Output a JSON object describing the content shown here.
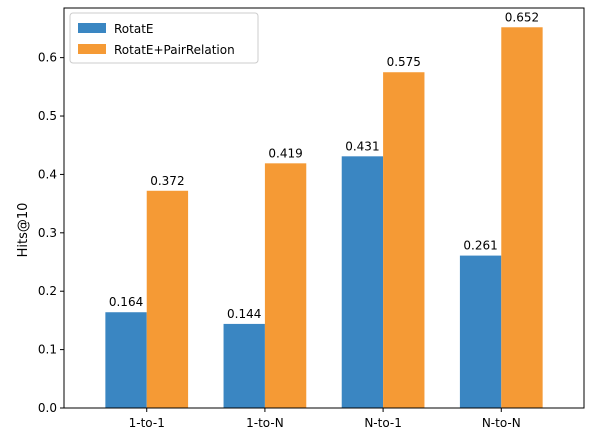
{
  "chart_data": {
    "type": "bar",
    "title": "",
    "xlabel": "",
    "ylabel": "Hits@10",
    "categories": [
      "1-to-1",
      "1-to-N",
      "N-to-1",
      "N-to-N"
    ],
    "series": [
      {
        "name": "RotatE",
        "color": "#3a86c2",
        "values": [
          0.164,
          0.144,
          0.431,
          0.261
        ]
      },
      {
        "name": "RotatE+PairRelation",
        "color": "#f59a35",
        "values": [
          0.372,
          0.419,
          0.575,
          0.652
        ]
      }
    ],
    "value_labels": [
      [
        "0.164",
        "0.144",
        "0.431",
        "0.261"
      ],
      [
        "0.372",
        "0.419",
        "0.575",
        "0.652"
      ]
    ],
    "yticks": [
      0.0,
      0.1,
      0.2,
      0.3,
      0.4,
      0.5,
      0.6
    ],
    "ytick_labels": [
      "0.0",
      "0.1",
      "0.2",
      "0.3",
      "0.4",
      "0.5",
      "0.6"
    ],
    "ylim": [
      0,
      0.685
    ],
    "legend": "top-left",
    "grid": false
  }
}
